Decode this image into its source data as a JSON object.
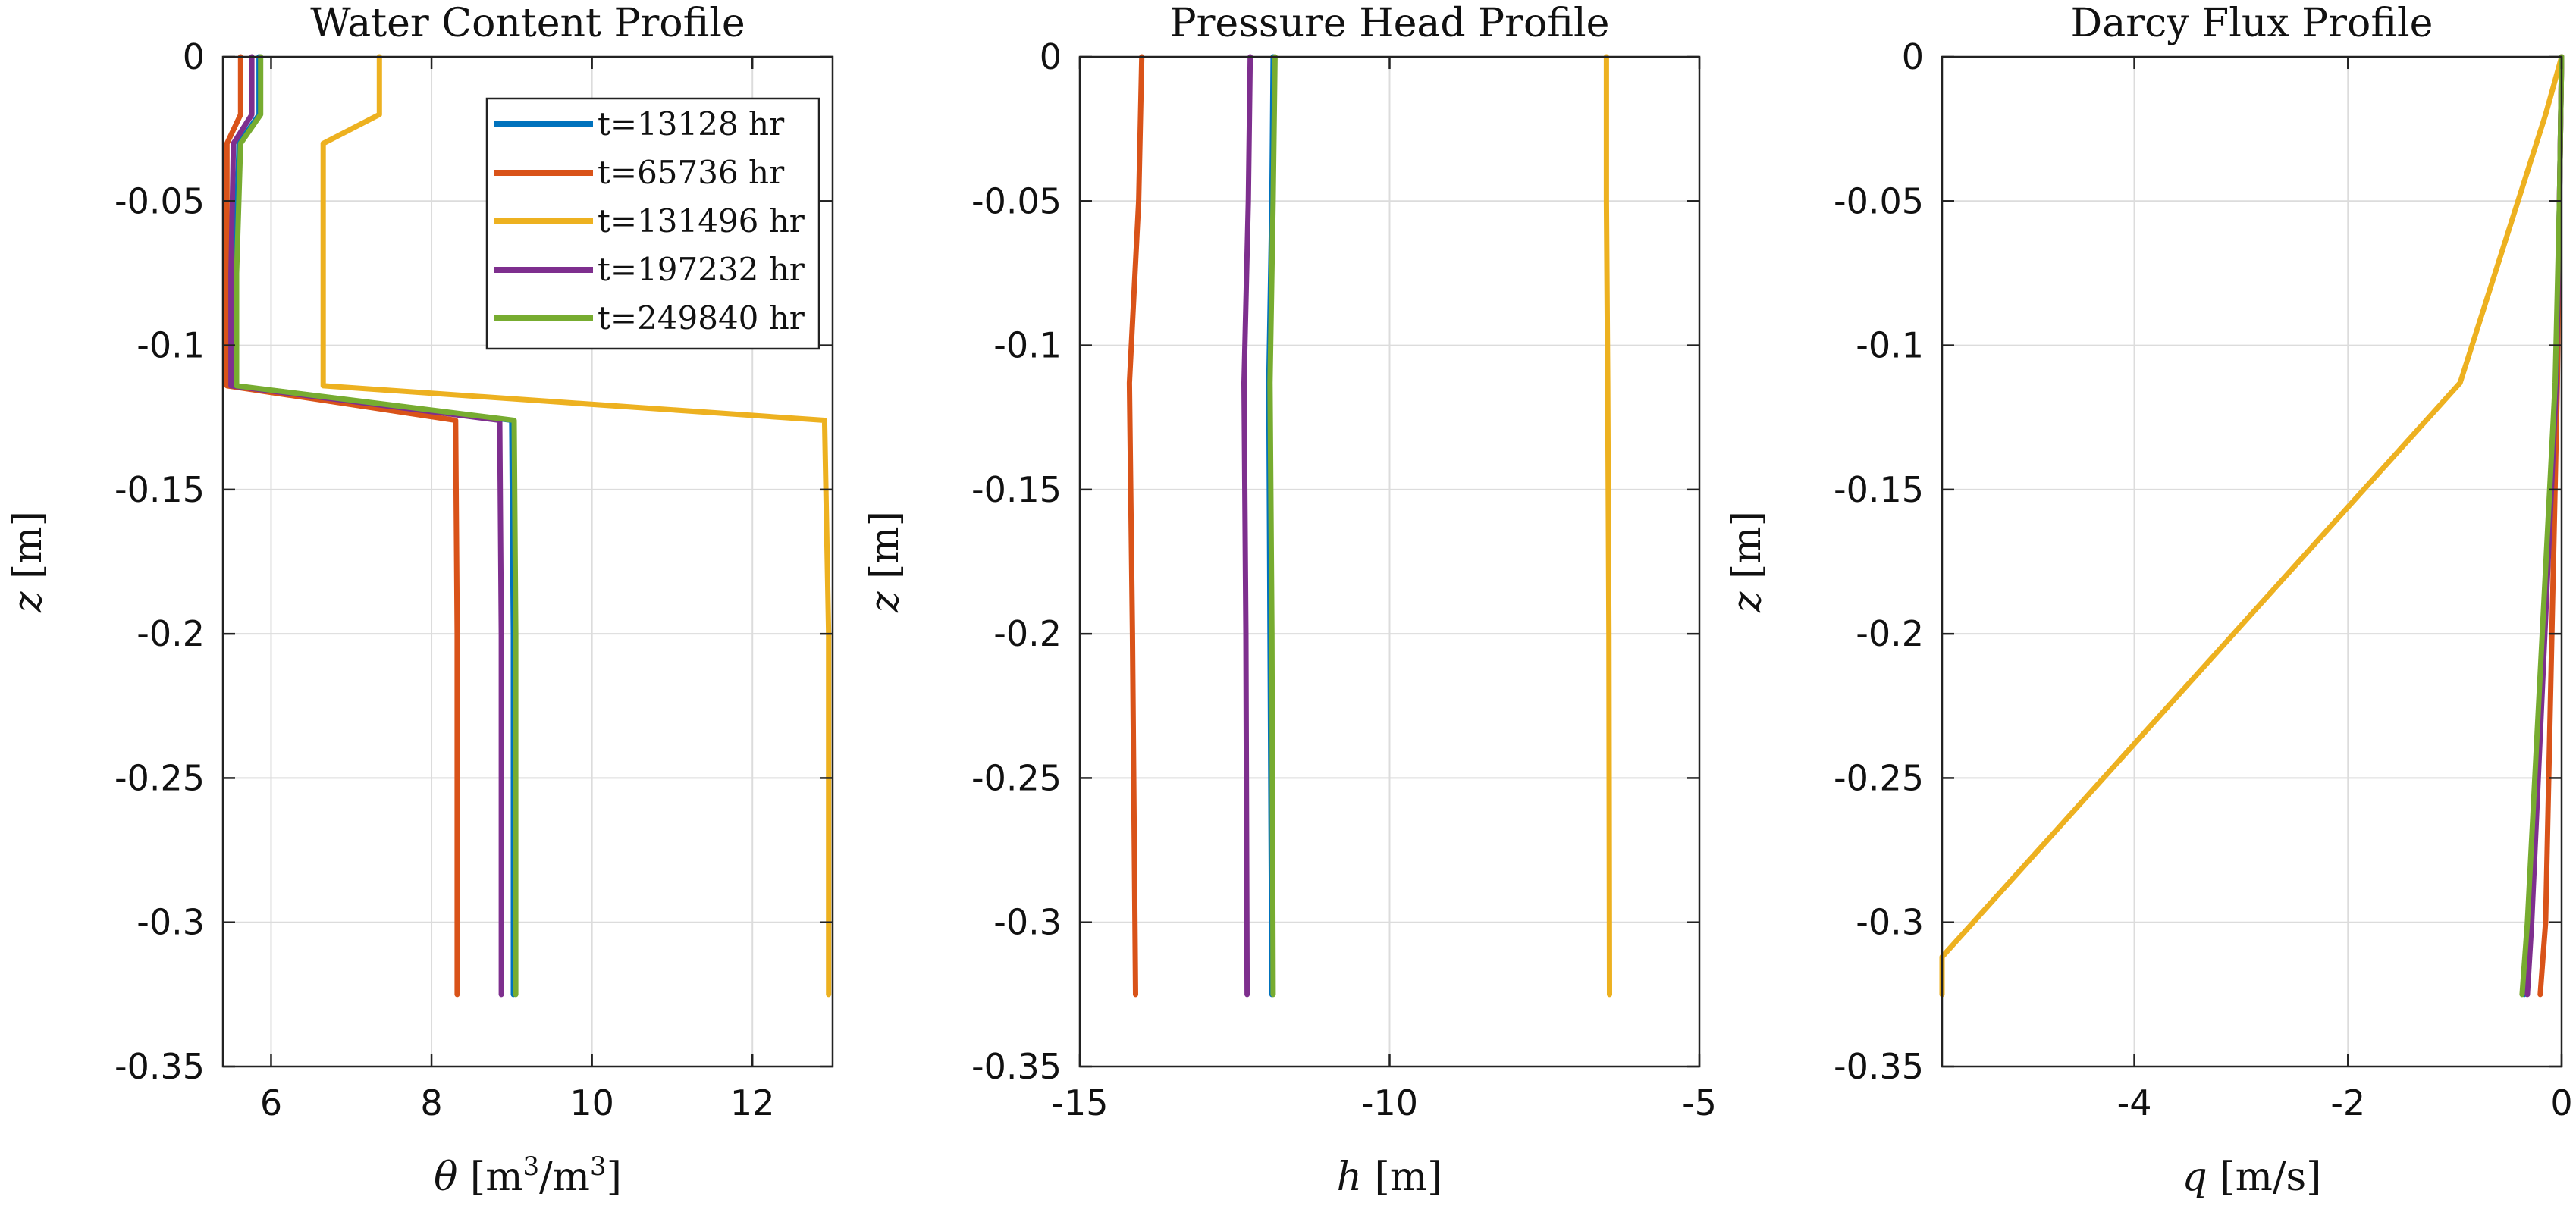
{
  "chart_data": [
    {
      "type": "line",
      "title": "Water Content Profile",
      "xlabel_var": "θ",
      "xlabel_unit": "[m",
      "xlabel_sup1": "3",
      "xlabel_mid": "/m",
      "xlabel_sup2": "3",
      "xlabel_end": "]",
      "ylabel_var": "z",
      "ylabel_unit": "[m]",
      "xlim": [
        5.4,
        13.0
      ],
      "ylim": [
        -0.35,
        0
      ],
      "xticks": [
        6,
        8,
        10,
        12
      ],
      "xtick_labels": [
        "6",
        "8",
        "10",
        "12"
      ],
      "yticks": [
        0,
        -0.05,
        -0.1,
        -0.15,
        -0.2,
        -0.25,
        -0.3,
        -0.35
      ],
      "ytick_labels": [
        "0",
        "-0.05",
        "-0.1",
        "-0.15",
        "-0.2",
        "-0.25",
        "-0.3",
        "-0.35"
      ],
      "grid": true,
      "legend": "top-right",
      "series": [
        {
          "name": "t=13128 hr",
          "color": "#0072BD",
          "x": [
            5.85,
            5.85,
            5.6,
            5.55,
            5.55,
            9.0,
            9.02,
            9.02
          ],
          "y": [
            0,
            -0.02,
            -0.03,
            -0.075,
            -0.114,
            -0.126,
            -0.2,
            -0.325
          ]
        },
        {
          "name": "t=65736 hr",
          "color": "#D95319",
          "x": [
            5.62,
            5.62,
            5.45,
            5.45,
            5.45,
            8.3,
            8.32,
            8.32
          ],
          "y": [
            0,
            -0.02,
            -0.03,
            -0.075,
            -0.114,
            -0.126,
            -0.2,
            -0.325
          ]
        },
        {
          "name": "t=131496 hr",
          "color": "#EDB120",
          "x": [
            7.35,
            7.35,
            6.65,
            6.65,
            6.65,
            12.9,
            12.95,
            12.95
          ],
          "y": [
            0,
            -0.02,
            -0.03,
            -0.075,
            -0.114,
            -0.126,
            -0.2,
            -0.325
          ]
        },
        {
          "name": "t=197232 hr",
          "color": "#7E2F8E",
          "x": [
            5.76,
            5.76,
            5.53,
            5.5,
            5.5,
            8.85,
            8.87,
            8.87
          ],
          "y": [
            0,
            -0.02,
            -0.03,
            -0.075,
            -0.114,
            -0.126,
            -0.2,
            -0.325
          ]
        },
        {
          "name": "t=249840 hr",
          "color": "#77AC30",
          "x": [
            5.87,
            5.87,
            5.62,
            5.57,
            5.57,
            9.03,
            9.05,
            9.05
          ],
          "y": [
            0,
            -0.02,
            -0.03,
            -0.075,
            -0.114,
            -0.126,
            -0.2,
            -0.325
          ]
        }
      ]
    },
    {
      "type": "line",
      "title": "Pressure Head Profile",
      "xlabel_var": "h",
      "xlabel_unit": "[m]",
      "ylabel_var": "z",
      "ylabel_unit": "[m]",
      "xlim": [
        -15,
        -5
      ],
      "ylim": [
        -0.35,
        0
      ],
      "xticks": [
        -15,
        -10,
        -5
      ],
      "xtick_labels": [
        "-15",
        "-10",
        "-5"
      ],
      "yticks": [
        0,
        -0.05,
        -0.1,
        -0.15,
        -0.2,
        -0.25,
        -0.3,
        -0.35
      ],
      "ytick_labels": [
        "0",
        "-0.05",
        "-0.1",
        "-0.15",
        "-0.2",
        "-0.25",
        "-0.3",
        "-0.35"
      ],
      "grid": true,
      "series": [
        {
          "name": "t=13128 hr",
          "color": "#0072BD",
          "x": [
            -11.88,
            -11.9,
            -11.95,
            -11.93,
            -11.9
          ],
          "y": [
            0,
            -0.05,
            -0.113,
            -0.2,
            -0.325
          ]
        },
        {
          "name": "t=65736 hr",
          "color": "#D95319",
          "x": [
            -14.0,
            -14.05,
            -14.2,
            -14.15,
            -14.1
          ],
          "y": [
            0,
            -0.05,
            -0.113,
            -0.2,
            -0.325
          ]
        },
        {
          "name": "t=131496 hr",
          "color": "#EDB120",
          "x": [
            -6.5,
            -6.5,
            -6.48,
            -6.46,
            -6.45
          ],
          "y": [
            0,
            -0.05,
            -0.113,
            -0.2,
            -0.325
          ]
        },
        {
          "name": "t=197232 hr",
          "color": "#7E2F8E",
          "x": [
            -12.25,
            -12.28,
            -12.35,
            -12.32,
            -12.3
          ],
          "y": [
            0,
            -0.05,
            -0.113,
            -0.2,
            -0.325
          ]
        },
        {
          "name": "t=249840 hr",
          "color": "#77AC30",
          "x": [
            -11.85,
            -11.88,
            -11.93,
            -11.9,
            -11.88
          ],
          "y": [
            0,
            -0.05,
            -0.113,
            -0.2,
            -0.325
          ]
        }
      ]
    },
    {
      "type": "line",
      "title": "Darcy Flux Profile",
      "xlabel_var": "q",
      "xlabel_unit": "[m/s]",
      "ylabel_var": "z",
      "ylabel_unit": "[m]",
      "xlim": [
        -5.8,
        0
      ],
      "ylim": [
        -0.35,
        0
      ],
      "xticks": [
        -4,
        -2,
        0
      ],
      "xtick_labels": [
        "-4",
        "-2",
        "0"
      ],
      "yticks": [
        0,
        -0.05,
        -0.1,
        -0.15,
        -0.2,
        -0.25,
        -0.3,
        -0.35
      ],
      "ytick_labels": [
        "0",
        "-0.05",
        "-0.1",
        "-0.15",
        "-0.2",
        "-0.25",
        "-0.3",
        "-0.35"
      ],
      "grid": true,
      "series": [
        {
          "name": "t=13128 hr",
          "color": "#0072BD",
          "x": [
            0,
            -0.02,
            -0.05,
            -0.3,
            -0.35
          ],
          "y": [
            0,
            -0.05,
            -0.113,
            -0.3,
            -0.325
          ]
        },
        {
          "name": "t=65736 hr",
          "color": "#D95319",
          "x": [
            0,
            -0.02,
            -0.04,
            -0.15,
            -0.2
          ],
          "y": [
            0,
            -0.05,
            -0.113,
            -0.3,
            -0.325
          ]
        },
        {
          "name": "t=131496 hr",
          "color": "#EDB120",
          "x": [
            0,
            -0.15,
            -0.95,
            -5.8,
            -5.8
          ],
          "y": [
            0,
            -0.02,
            -0.113,
            -0.312,
            -0.325
          ]
        },
        {
          "name": "t=197232 hr",
          "color": "#7E2F8E",
          "x": [
            0,
            -0.02,
            -0.05,
            -0.28,
            -0.32
          ],
          "y": [
            0,
            -0.05,
            -0.113,
            -0.3,
            -0.325
          ]
        },
        {
          "name": "t=249840 hr",
          "color": "#77AC30",
          "x": [
            0,
            -0.02,
            -0.06,
            -0.32,
            -0.37
          ],
          "y": [
            0,
            -0.05,
            -0.113,
            -0.3,
            -0.325
          ]
        }
      ]
    }
  ]
}
